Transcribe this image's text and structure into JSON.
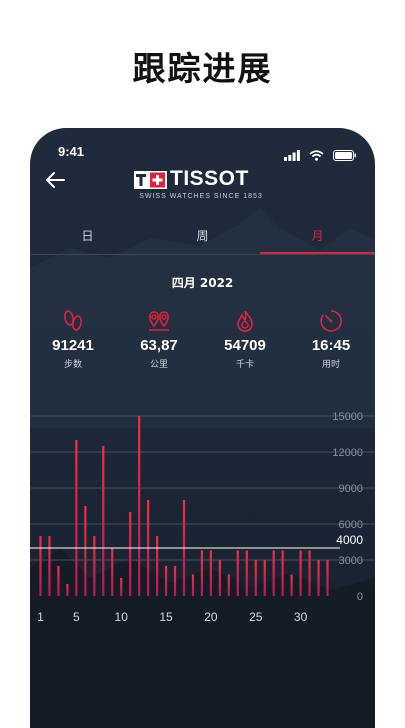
{
  "headline": "跟踪进展",
  "status_bar": {
    "time": "9:41"
  },
  "brand": {
    "name": "TISSOT",
    "tagline": "SWISS WATCHES SINCE 1853"
  },
  "tabs": [
    {
      "label": "日",
      "active": false
    },
    {
      "label": "周",
      "active": false
    },
    {
      "label": "月",
      "active": true
    }
  ],
  "period": "四月 2022",
  "stats": [
    {
      "icon": "footsteps-icon",
      "value": "91241",
      "label": "步数"
    },
    {
      "icon": "map-pins-icon",
      "value": "63,87",
      "label": "公里"
    },
    {
      "icon": "flame-icon",
      "value": "54709",
      "label": "千卡"
    },
    {
      "icon": "timer-icon",
      "value": "16:45",
      "label": "用时"
    }
  ],
  "colors": {
    "accent": "#e2213b",
    "background": "#1e2a3b",
    "bar_top": "#f2303e",
    "bar_bottom": "#b8175f"
  },
  "chart_data": {
    "type": "bar",
    "x": [
      1,
      2,
      3,
      4,
      5,
      6,
      7,
      8,
      9,
      10,
      11,
      12,
      13,
      14,
      15,
      16,
      17,
      18,
      19,
      20,
      21,
      22,
      23,
      24,
      25,
      26,
      27,
      28,
      29,
      30,
      31,
      32,
      33
    ],
    "values": [
      5000,
      5000,
      2500,
      1000,
      13000,
      7500,
      5000,
      12500,
      4000,
      1500,
      7000,
      15000,
      8000,
      5000,
      2500,
      2500,
      8000,
      1800,
      3800,
      3800,
      3000,
      1800,
      3800,
      3800,
      3000,
      3000,
      3800,
      3800,
      1800,
      3800,
      3800,
      3000,
      3000
    ],
    "x_ticks": [
      1,
      5,
      10,
      15,
      20,
      25,
      30
    ],
    "y_ticks": [
      0,
      3000,
      6000,
      9000,
      12000,
      15000
    ],
    "ylim": [
      0,
      15000
    ],
    "reference_line": {
      "value": 4000,
      "label": "4000"
    },
    "grid": true
  }
}
